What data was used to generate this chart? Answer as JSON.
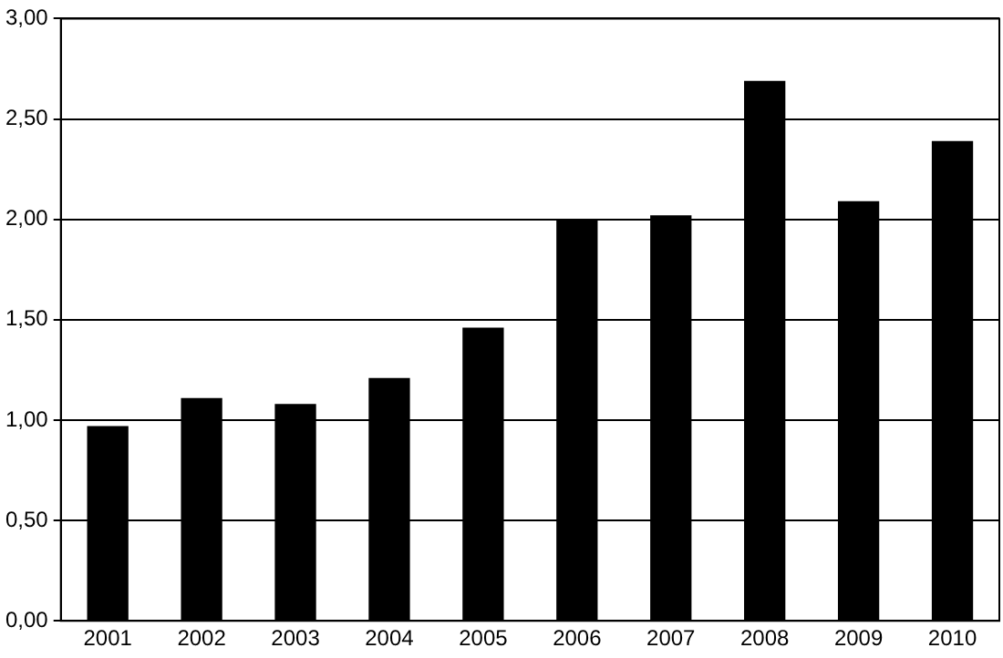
{
  "chart_data": {
    "type": "bar",
    "categories": [
      "2001",
      "2002",
      "2003",
      "2004",
      "2005",
      "2006",
      "2007",
      "2008",
      "2009",
      "2010"
    ],
    "values": [
      0.97,
      1.11,
      1.08,
      1.21,
      1.46,
      2.0,
      2.02,
      2.69,
      2.09,
      2.39
    ],
    "color": "#000000",
    "ylim": [
      0,
      3
    ],
    "yticks": [
      {
        "value": 0,
        "label": "0,00"
      },
      {
        "value": 0.5,
        "label": "0,50"
      },
      {
        "value": 1,
        "label": "1,00"
      },
      {
        "value": 1.5,
        "label": "1,50"
      },
      {
        "value": 2,
        "label": "2,00"
      },
      {
        "value": 2.5,
        "label": "2,50"
      },
      {
        "value": 3,
        "label": "3,00"
      }
    ],
    "grid": "y"
  }
}
